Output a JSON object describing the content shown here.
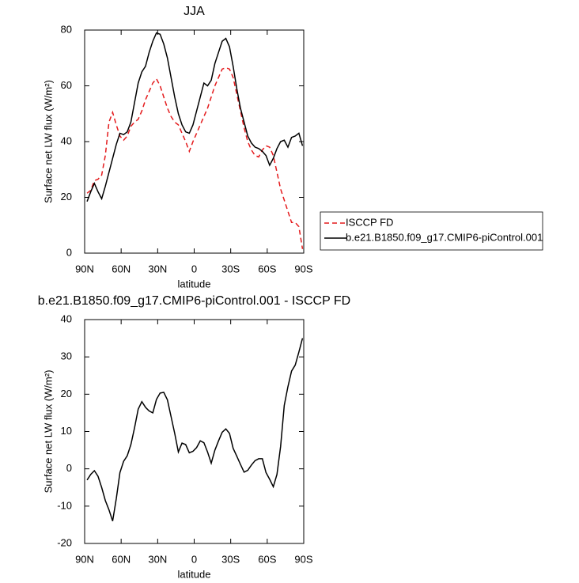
{
  "chart_data": [
    {
      "type": "line",
      "title": "JJA",
      "xlabel": "latitude",
      "ylabel": "Surface net LW flux (W/m²)",
      "x": [
        88,
        85,
        82,
        79,
        76,
        73,
        70,
        67,
        64,
        61,
        58,
        55,
        52,
        49,
        46,
        43,
        40,
        37,
        34,
        31,
        28,
        25,
        22,
        19,
        16,
        13,
        10,
        7,
        4,
        1,
        -2,
        -5,
        -8,
        -11,
        -14,
        -17,
        -20,
        -23,
        -26,
        -29,
        -32,
        -35,
        -38,
        -41,
        -44,
        -47,
        -50,
        -53,
        -56,
        -59,
        -62,
        -65,
        -68,
        -71,
        -74,
        -77,
        -80,
        -83,
        -86,
        -89
      ],
      "series": [
        {
          "name": "ISCCP FD",
          "color": "#e41a1c",
          "linestyle": "dashed",
          "values": [
            21.5,
            22.5,
            26,
            26.5,
            28,
            35,
            47,
            50.5,
            46,
            42,
            40.5,
            42,
            45.5,
            47,
            48,
            51,
            55,
            58,
            61,
            62.5,
            60,
            56,
            52,
            49,
            47,
            46,
            43,
            40,
            36.5,
            40,
            43,
            46,
            49,
            52,
            56,
            60,
            63,
            66,
            66.5,
            66,
            63,
            57,
            51,
            45,
            40,
            37,
            35,
            34.5,
            37,
            38.5,
            38,
            35,
            29,
            23,
            19,
            15,
            11,
            11,
            9.5,
            1.5
          ]
        },
        {
          "name": "b.e21.B1850.f09_g17.CMIP6-piControl.001",
          "color": "#000000",
          "linestyle": "solid",
          "values": [
            18.5,
            22,
            25,
            22,
            19.5,
            24,
            29,
            34,
            39,
            43,
            42.5,
            43.5,
            47,
            54,
            61,
            65,
            67,
            72,
            76,
            79,
            78.5,
            75,
            70,
            63,
            56,
            50,
            46,
            43.5,
            43,
            46,
            51,
            56,
            61,
            60,
            62,
            68,
            72,
            76,
            77,
            74,
            67,
            59,
            52,
            47,
            42,
            39.5,
            38,
            37.5,
            36.5,
            35,
            31.5,
            34,
            37.5,
            40,
            40.5,
            38,
            41.5,
            42,
            43,
            38.5
          ]
        }
      ],
      "xlim": [
        90,
        -90
      ],
      "xticks": [
        {
          "value": 90,
          "label": "90N"
        },
        {
          "value": 60,
          "label": "60N"
        },
        {
          "value": 30,
          "label": "30N"
        },
        0,
        {
          "value": -30,
          "label": "30S"
        },
        {
          "value": -60,
          "label": "60S"
        },
        {
          "value": -90,
          "label": "90S"
        }
      ],
      "ylim": [
        0,
        80
      ],
      "yticks": [
        0,
        20,
        40,
        60,
        80
      ],
      "legend": "right"
    },
    {
      "type": "line",
      "title": "b.e21.B1850.f09_g17.CMIP6-piControl.001 - ISCCP FD",
      "xlabel": "latitude",
      "ylabel": "Surface net LW flux (W/m²)",
      "x": [
        88,
        85,
        82,
        79,
        76,
        73,
        70,
        67,
        64,
        61,
        58,
        55,
        52,
        49,
        46,
        43,
        40,
        37,
        34,
        31,
        28,
        25,
        22,
        19,
        16,
        13,
        10,
        7,
        4,
        1,
        -2,
        -5,
        -8,
        -11,
        -14,
        -17,
        -20,
        -23,
        -26,
        -29,
        -32,
        -35,
        -38,
        -41,
        -44,
        -47,
        -50,
        -53,
        -56,
        -59,
        -62,
        -65,
        -68,
        -71,
        -74,
        -77,
        -80,
        -83,
        -86,
        -89
      ],
      "values": [
        -3,
        -1.5,
        -0.5,
        -2,
        -5,
        -8.5,
        -11,
        -14,
        -8,
        -1,
        2,
        3.5,
        6.5,
        11,
        16,
        18,
        16.5,
        15.5,
        15,
        18.6,
        20.3,
        20.5,
        18.5,
        14,
        9.5,
        4.5,
        6.9,
        6.5,
        4.3,
        4.7,
        5.7,
        7.5,
        7,
        4.5,
        1.5,
        5,
        7.5,
        9.8,
        10.7,
        9.5,
        5.5,
        3.4,
        1.2,
        -0.9,
        -0.4,
        1,
        2.2,
        2.7,
        2.7,
        -1,
        -2.8,
        -4.8,
        -1.5,
        6,
        17,
        22,
        26.2,
        27.8,
        31.3,
        35
      ],
      "color": "#000000",
      "xlim": [
        90,
        -90
      ],
      "xticks": [
        {
          "value": 90,
          "label": "90N"
        },
        {
          "value": 60,
          "label": "60N"
        },
        {
          "value": 30,
          "label": "30N"
        },
        0,
        {
          "value": -30,
          "label": "30S"
        },
        {
          "value": -60,
          "label": "60S"
        },
        {
          "value": -90,
          "label": "90S"
        }
      ],
      "ylim": [
        -20,
        40
      ],
      "yticks": [
        -20,
        -10,
        0,
        10,
        20,
        30,
        40
      ]
    }
  ]
}
